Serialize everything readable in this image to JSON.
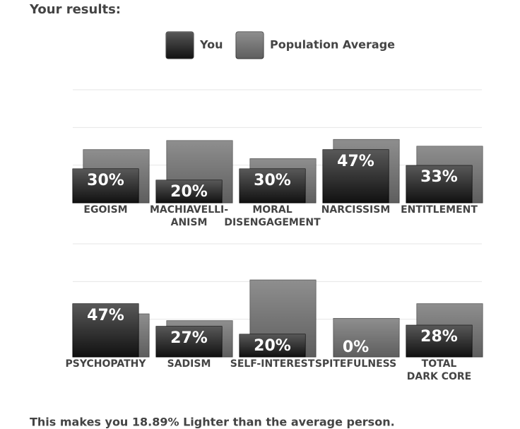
{
  "title": "Your results:",
  "footer": "This makes you 18.89% Lighter than the average person.",
  "chart_data": [
    {
      "type": "bar",
      "categories": [
        "EGOISM",
        "MACHIAVELLI-\nANISM",
        "MORAL\nDISENGAGEMENT",
        "NARCISSISM",
        "ENTITLEMENT"
      ],
      "series": [
        {
          "name": "You",
          "color": "#111111",
          "values": [
            30,
            20,
            30,
            47,
            33
          ],
          "value_labels": [
            "30%",
            "20%",
            "30%",
            "47%",
            "33%"
          ]
        },
        {
          "name": "Population Average",
          "color": "#5e5e5e",
          "values": [
            47,
            55,
            39,
            56,
            50
          ]
        }
      ],
      "ylim": [
        0,
        100
      ],
      "grid": true
    },
    {
      "type": "bar",
      "categories": [
        "PSYCHOPATHY",
        "SADISM",
        "SELF-INTEREST",
        "SPITEFULNESS",
        "TOTAL\nDARK CORE"
      ],
      "series": [
        {
          "name": "You",
          "color": "#111111",
          "values": [
            47,
            27,
            20,
            0,
            28
          ],
          "value_labels": [
            "47%",
            "27%",
            "20%",
            "0%",
            "28%"
          ]
        },
        {
          "name": "Population Average",
          "color": "#5e5e5e",
          "values": [
            38,
            32,
            68,
            34,
            47
          ]
        }
      ],
      "ylim": [
        0,
        100
      ],
      "grid": true
    }
  ]
}
